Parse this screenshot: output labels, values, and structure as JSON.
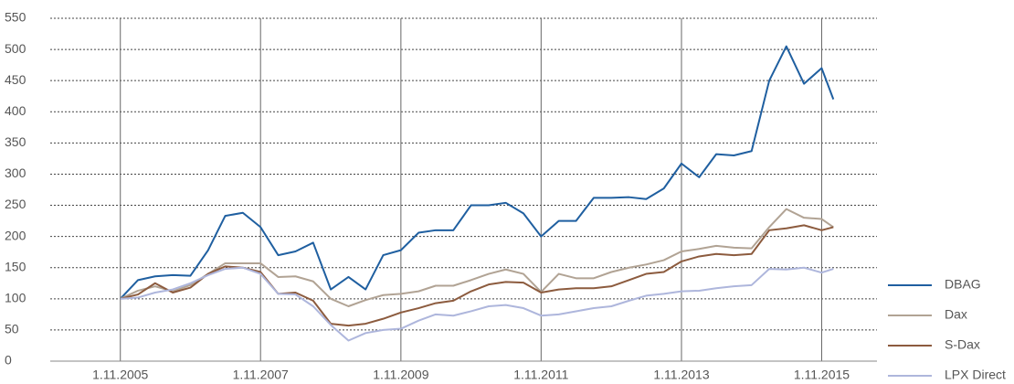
{
  "chart_data": {
    "type": "line",
    "x": [
      "2005-11-01",
      "2006-02-01",
      "2006-05-01",
      "2006-08-01",
      "2006-11-01",
      "2007-02-01",
      "2007-05-01",
      "2007-08-01",
      "2007-11-01",
      "2008-02-01",
      "2008-05-01",
      "2008-08-01",
      "2008-11-01",
      "2009-02-01",
      "2009-05-01",
      "2009-08-01",
      "2009-11-01",
      "2010-02-01",
      "2010-05-01",
      "2010-08-01",
      "2010-11-01",
      "2011-02-01",
      "2011-05-01",
      "2011-08-01",
      "2011-11-01",
      "2012-02-01",
      "2012-05-01",
      "2012-08-01",
      "2012-11-01",
      "2013-02-01",
      "2013-05-01",
      "2013-08-01",
      "2013-11-01",
      "2014-02-01",
      "2014-05-01",
      "2014-08-01",
      "2014-11-01",
      "2015-02-01",
      "2015-05-01",
      "2015-08-01",
      "2015-11-01",
      "2016-01-01"
    ],
    "series": [
      {
        "name": "DBAG",
        "color": "#1f5fa0",
        "values": [
          100,
          130,
          136,
          138,
          137,
          178,
          233,
          238,
          215,
          170,
          176,
          190,
          115,
          135,
          115,
          170,
          178,
          206,
          210,
          210,
          250,
          250,
          254,
          237,
          200,
          225,
          225,
          262,
          262,
          263,
          260,
          277,
          317,
          295,
          332,
          330,
          337,
          450,
          505,
          445,
          470,
          420
        ]
      },
      {
        "name": "Dax",
        "color": "#b1a394",
        "values": [
          100,
          113,
          120,
          112,
          122,
          140,
          157,
          157,
          157,
          135,
          136,
          128,
          100,
          88,
          98,
          106,
          108,
          112,
          121,
          121,
          130,
          140,
          147,
          140,
          111,
          140,
          133,
          133,
          143,
          150,
          155,
          162,
          176,
          180,
          185,
          182,
          181,
          215,
          244,
          230,
          228,
          215
        ]
      },
      {
        "name": "S-Dax",
        "color": "#8c5b3e",
        "values": [
          100,
          107,
          125,
          110,
          118,
          140,
          152,
          150,
          143,
          108,
          110,
          97,
          60,
          57,
          60,
          68,
          78,
          85,
          93,
          97,
          112,
          123,
          127,
          126,
          110,
          115,
          117,
          117,
          120,
          130,
          140,
          143,
          160,
          168,
          172,
          170,
          172,
          210,
          213,
          218,
          210,
          215
        ]
      },
      {
        "name": "LPX Direct",
        "color": "#aeb6dc",
        "values": [
          100,
          102,
          110,
          115,
          125,
          138,
          148,
          150,
          140,
          108,
          107,
          88,
          58,
          33,
          45,
          50,
          52,
          65,
          75,
          73,
          80,
          88,
          90,
          85,
          73,
          75,
          80,
          85,
          88,
          97,
          105,
          108,
          112,
          113,
          117,
          120,
          122,
          148,
          147,
          150,
          142,
          148
        ]
      }
    ],
    "xlim": [
      "2004-11-01",
      "2016-08-15"
    ],
    "xticks": [
      {
        "value": "2005-11-01",
        "label": "1.11.2005"
      },
      {
        "value": "2007-11-01",
        "label": "1.11.2007"
      },
      {
        "value": "2009-11-01",
        "label": "1.11.2009"
      },
      {
        "value": "2011-11-01",
        "label": "1.11.2011"
      },
      {
        "value": "2013-11-01",
        "label": "1.11.2013"
      },
      {
        "value": "2015-11-01",
        "label": "1.11.2015"
      }
    ],
    "ylim": [
      0,
      550
    ],
    "yticks": [
      0,
      50,
      100,
      150,
      200,
      250,
      300,
      350,
      400,
      450,
      500,
      550
    ],
    "grid": true,
    "legend": "right"
  }
}
